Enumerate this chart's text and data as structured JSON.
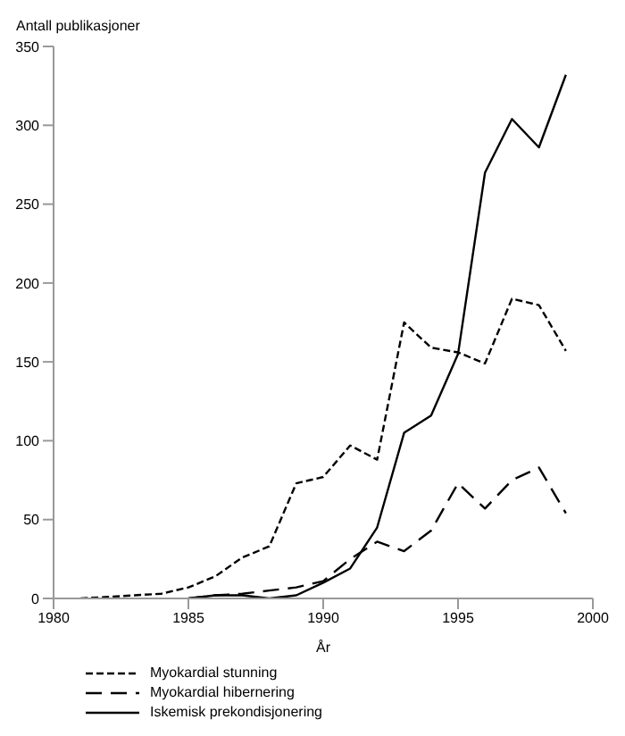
{
  "chart_data": {
    "type": "line",
    "xlabel": "År",
    "ylabel": "Antall publikasjoner",
    "xlim": [
      1980,
      2000
    ],
    "xticks": [
      1980,
      1985,
      1990,
      1995,
      2000
    ],
    "ylim": [
      0,
      350
    ],
    "yticks": [
      0,
      50,
      100,
      150,
      200,
      250,
      300,
      350
    ],
    "grid": false,
    "legend": "bottom left",
    "marker": "none",
    "series": [
      {
        "name": "Myokardial stunning",
        "color": "#000000",
        "line_style": "dotted",
        "x": [
          1981,
          1982,
          1983,
          1984,
          1985,
          1986,
          1987,
          1988,
          1989,
          1990,
          1991,
          1992,
          1993,
          1994,
          1995,
          1996,
          1997,
          1998,
          1999
        ],
        "values": [
          0,
          1,
          2,
          3,
          7,
          14,
          26,
          33,
          73,
          77,
          97,
          88,
          175,
          159,
          156,
          149,
          190,
          186,
          157
        ]
      },
      {
        "name": "Myokardial hibernering",
        "color": "#000000",
        "line_style": "dashed",
        "x": [
          1985,
          1986,
          1987,
          1988,
          1989,
          1990,
          1991,
          1992,
          1993,
          1994,
          1995,
          1996,
          1997,
          1998,
          1999
        ],
        "values": [
          0,
          2,
          3,
          5,
          7,
          11,
          25,
          36,
          30,
          43,
          73,
          57,
          75,
          83,
          54
        ]
      },
      {
        "name": "Iskemisk prekondisjonering",
        "color": "#000000",
        "line_style": "solid",
        "x": [
          1985,
          1986,
          1987,
          1988,
          1989,
          1990,
          1991,
          1992,
          1993,
          1994,
          1995,
          1996,
          1997,
          1998,
          1999
        ],
        "values": [
          0,
          2,
          2,
          0,
          2,
          10,
          19,
          45,
          105,
          116,
          155,
          270,
          304,
          286,
          332
        ]
      }
    ]
  }
}
